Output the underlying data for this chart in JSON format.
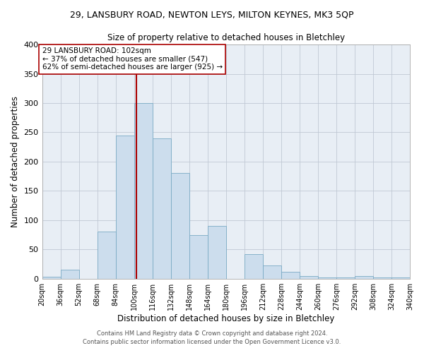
{
  "title_line1": "29, LANSBURY ROAD, NEWTON LEYS, MILTON KEYNES, MK3 5QP",
  "title_line2": "Size of property relative to detached houses in Bletchley",
  "xlabel": "Distribution of detached houses by size in Bletchley",
  "ylabel": "Number of detached properties",
  "bar_color": "#ccdded",
  "bar_edge_color": "#7aaac4",
  "bg_color": "#e8eef5",
  "fig_color": "#ffffff",
  "grid_color": "#c0c8d4",
  "bin_edges": [
    20,
    36,
    52,
    68,
    84,
    100,
    116,
    132,
    148,
    164,
    180,
    196,
    212,
    228,
    244,
    260,
    276,
    292,
    308,
    324,
    340
  ],
  "bin_labels": [
    "20sqm",
    "36sqm",
    "52sqm",
    "68sqm",
    "84sqm",
    "100sqm",
    "116sqm",
    "132sqm",
    "148sqm",
    "164sqm",
    "180sqm",
    "196sqm",
    "212sqm",
    "228sqm",
    "244sqm",
    "260sqm",
    "276sqm",
    "292sqm",
    "308sqm",
    "324sqm",
    "340sqm"
  ],
  "counts": [
    3,
    15,
    0,
    80,
    245,
    300,
    240,
    180,
    75,
    90,
    0,
    42,
    22,
    12,
    5,
    2,
    2,
    5,
    2,
    2
  ],
  "ylim": [
    0,
    400
  ],
  "yticks": [
    0,
    50,
    100,
    150,
    200,
    250,
    300,
    350,
    400
  ],
  "vline_x": 102,
  "vline_color": "#aa0000",
  "annotation_text": "29 LANSBURY ROAD: 102sqm\n← 37% of detached houses are smaller (547)\n62% of semi-detached houses are larger (925) →",
  "annotation_box_color": "#ffffff",
  "annotation_box_edge": "#aa0000",
  "footer_line1": "Contains HM Land Registry data © Crown copyright and database right 2024.",
  "footer_line2": "Contains public sector information licensed under the Open Government Licence v3.0."
}
